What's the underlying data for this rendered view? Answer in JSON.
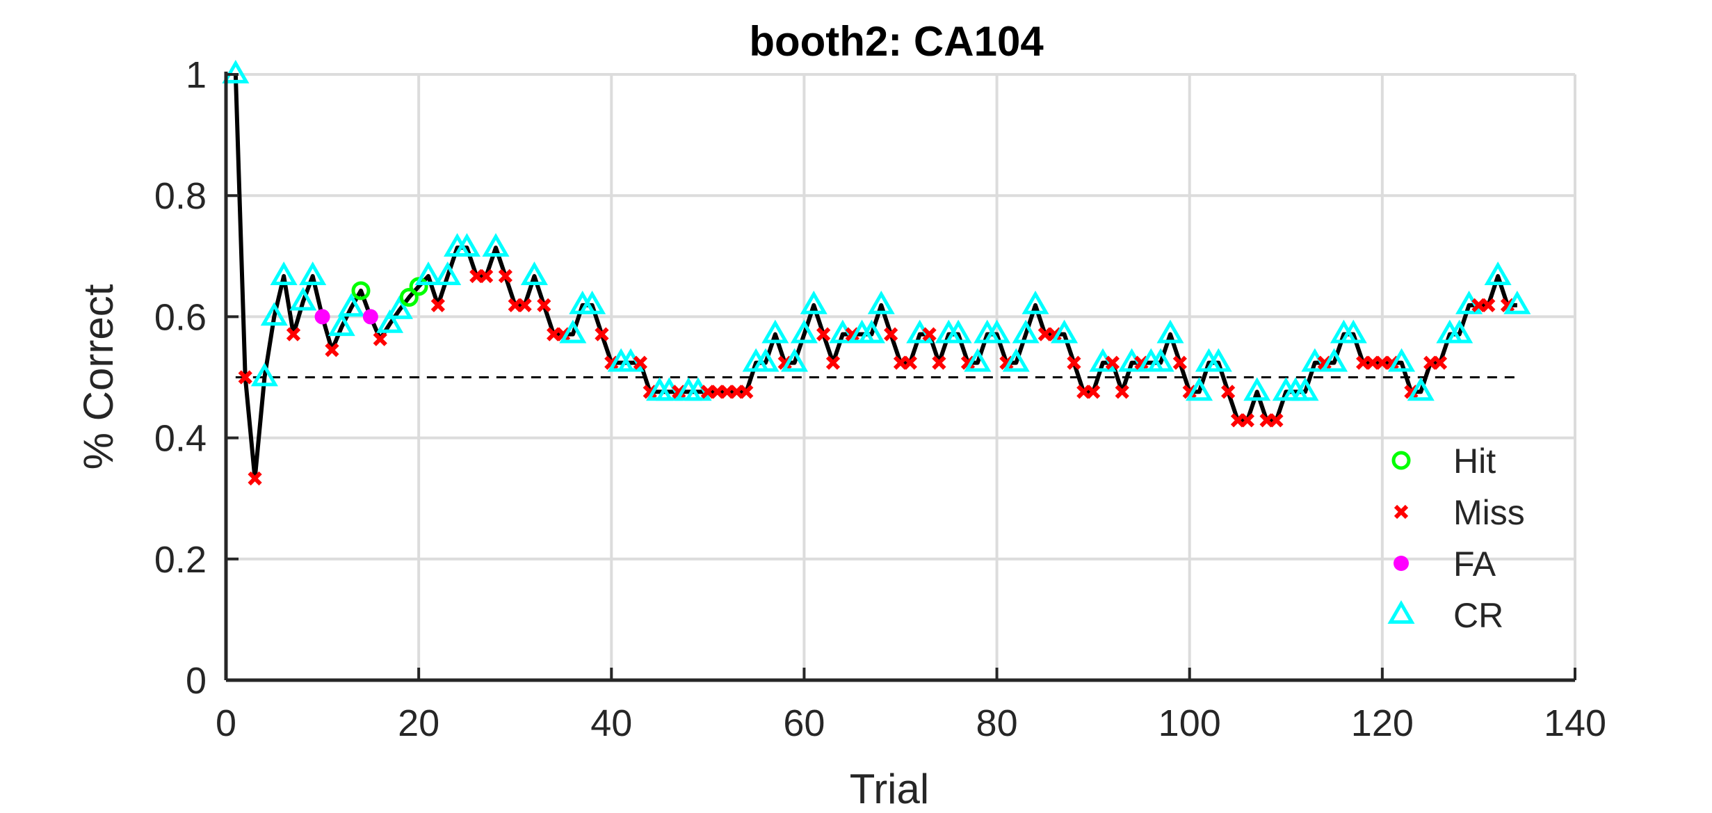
{
  "chart_data": {
    "type": "line",
    "title": "booth2: CA104",
    "xlabel": "Trial",
    "ylabel": "% Correct",
    "xlim": [
      0,
      140
    ],
    "ylim": [
      0,
      1
    ],
    "xticks": [
      0,
      20,
      40,
      60,
      80,
      100,
      120,
      140
    ],
    "yticks": [
      0,
      0.2,
      0.4,
      0.6,
      0.8,
      1
    ],
    "xtick_labels": [
      "0",
      "20",
      "40",
      "60",
      "80",
      "100",
      "120",
      "140"
    ],
    "ytick_labels": [
      "0",
      "0.2",
      "0.4",
      "0.6",
      "0.8",
      "1"
    ],
    "grid": true,
    "legend_position": "lower-right",
    "reference_line": 0.5,
    "colors": {
      "line": "#000000",
      "grid": "#dcdcdc",
      "axes": "#262626",
      "Hit": "#00ff00",
      "Miss": "#ff0000",
      "FA": "#ff00ff",
      "CR": "#00ffff"
    },
    "legend": [
      {
        "name": "Hit",
        "marker": "circle"
      },
      {
        "name": "Miss",
        "marker": "x"
      },
      {
        "name": "FA",
        "marker": "dot"
      },
      {
        "name": "CR",
        "marker": "triangle"
      }
    ],
    "series": [
      {
        "name": "% Correct",
        "x": [
          1,
          2,
          3,
          4,
          5,
          6,
          7,
          8,
          9,
          10,
          11,
          12,
          13,
          14,
          15,
          16,
          17,
          18,
          19,
          20,
          21,
          22,
          23,
          24,
          25,
          26,
          27,
          28,
          29,
          30,
          31,
          32,
          33,
          34,
          35,
          36,
          37,
          38,
          39,
          40,
          41,
          42,
          43,
          44,
          45,
          46,
          47,
          48,
          49,
          50,
          51,
          52,
          53,
          54,
          55,
          56,
          57,
          58,
          59,
          60,
          61,
          62,
          63,
          64,
          65,
          66,
          67,
          68,
          69,
          70,
          71,
          72,
          73,
          74,
          75,
          76,
          77,
          78,
          79,
          80,
          81,
          82,
          83,
          84,
          85,
          86,
          87,
          88,
          89,
          90,
          91,
          92,
          93,
          94,
          95,
          96,
          97,
          98,
          99,
          100,
          101,
          102,
          103,
          104,
          105,
          106,
          107,
          108,
          109,
          110,
          111,
          112,
          113,
          114,
          115,
          116,
          117,
          118,
          119,
          120,
          121,
          122,
          123,
          124,
          125,
          126,
          127,
          128,
          129,
          130,
          131,
          132,
          133,
          134
        ],
        "y": [
          1,
          0.5,
          0.333,
          0.5,
          0.6,
          0.667,
          0.571,
          0.625,
          0.667,
          0.6,
          0.545,
          0.583,
          0.615,
          0.643,
          0.6,
          0.563,
          0.588,
          0.611,
          0.632,
          0.65,
          0.667,
          0.619,
          0.667,
          0.714,
          0.714,
          0.667,
          0.667,
          0.714,
          0.667,
          0.619,
          0.619,
          0.667,
          0.619,
          0.571,
          0.571,
          0.571,
          0.619,
          0.619,
          0.571,
          0.524,
          0.524,
          0.524,
          0.524,
          0.476,
          0.476,
          0.476,
          0.476,
          0.476,
          0.476,
          0.476,
          0.476,
          0.476,
          0.476,
          0.476,
          0.524,
          0.524,
          0.571,
          0.524,
          0.524,
          0.571,
          0.619,
          0.571,
          0.524,
          0.571,
          0.571,
          0.571,
          0.571,
          0.619,
          0.571,
          0.524,
          0.524,
          0.571,
          0.571,
          0.524,
          0.571,
          0.571,
          0.524,
          0.524,
          0.571,
          0.571,
          0.524,
          0.524,
          0.571,
          0.619,
          0.571,
          0.571,
          0.571,
          0.524,
          0.476,
          0.476,
          0.524,
          0.524,
          0.476,
          0.524,
          0.524,
          0.524,
          0.524,
          0.571,
          0.524,
          0.476,
          0.476,
          0.524,
          0.524,
          0.476,
          0.429,
          0.429,
          0.476,
          0.429,
          0.429,
          0.476,
          0.476,
          0.476,
          0.524,
          0.524,
          0.524,
          0.571,
          0.571,
          0.524,
          0.524,
          0.524,
          0.524,
          0.524,
          0.476,
          0.476,
          0.524,
          0.524,
          0.571,
          0.571,
          0.619,
          0.619,
          0.619,
          0.667,
          0.619,
          0.619
        ],
        "outcomes": [
          "CR",
          "Miss",
          "Miss",
          "CR",
          "CR",
          "CR",
          "Miss",
          "CR",
          "CR",
          "FA",
          "Miss",
          "CR",
          "CR",
          "Hit",
          "FA",
          "Miss",
          "CR",
          "CR",
          "Hit",
          "Hit",
          "CR",
          "Miss",
          "CR",
          "CR",
          "CR",
          "Miss",
          "Miss",
          "CR",
          "Miss",
          "Miss",
          "Miss",
          "CR",
          "Miss",
          "Miss",
          "Miss",
          "CR",
          "CR",
          "CR",
          "Miss",
          "Miss",
          "CR",
          "CR",
          "Miss",
          "Miss",
          "CR",
          "CR",
          "Miss",
          "CR",
          "CR",
          "Miss",
          "Miss",
          "Miss",
          "Miss",
          "Miss",
          "CR",
          "CR",
          "CR",
          "Miss",
          "CR",
          "CR",
          "CR",
          "Miss",
          "Miss",
          "CR",
          "Miss",
          "CR",
          "CR",
          "CR",
          "Miss",
          "Miss",
          "Miss",
          "CR",
          "Miss",
          "Miss",
          "CR",
          "CR",
          "Miss",
          "CR",
          "CR",
          "CR",
          "Miss",
          "CR",
          "CR",
          "CR",
          "Miss",
          "Miss",
          "CR",
          "Miss",
          "Miss",
          "Miss",
          "CR",
          "Miss",
          "Miss",
          "CR",
          "Miss",
          "CR",
          "CR",
          "CR",
          "Miss",
          "Miss",
          "CR",
          "CR",
          "CR",
          "Miss",
          "Miss",
          "Miss",
          "CR",
          "Miss",
          "Miss",
          "CR",
          "CR",
          "CR",
          "CR",
          "Miss",
          "CR",
          "CR",
          "CR",
          "Miss",
          "Miss",
          "Miss",
          "Miss",
          "CR",
          "Miss",
          "CR",
          "Miss",
          "Miss",
          "CR",
          "CR",
          "CR",
          "Miss",
          "Miss",
          "CR",
          "Miss",
          "CR"
        ]
      }
    ]
  }
}
